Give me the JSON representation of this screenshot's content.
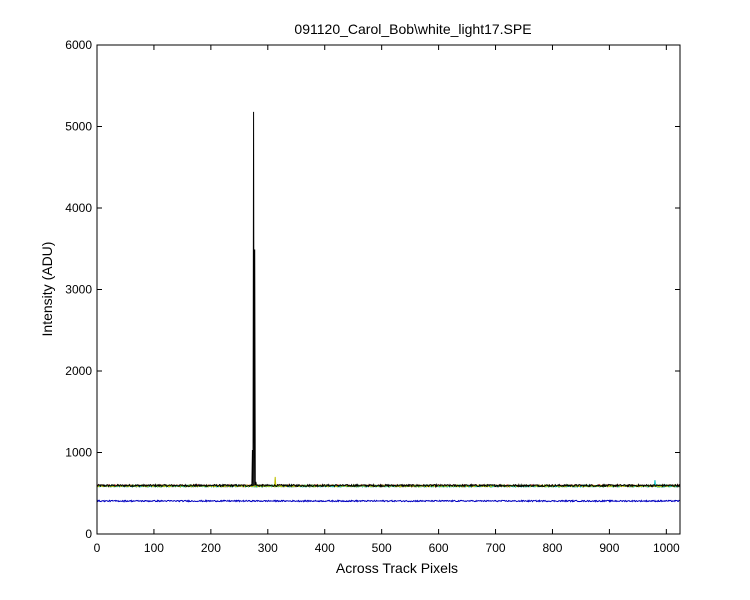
{
  "chart_data": {
    "type": "line",
    "title": "091120_Carol_Bob\\white_light17.SPE",
    "xlabel": "Across Track Pixels",
    "ylabel": "Intensity (ADU)",
    "xlim": [
      0,
      1024
    ],
    "ylim": [
      0,
      6000
    ],
    "xticks": [
      0,
      100,
      200,
      300,
      400,
      500,
      600,
      700,
      800,
      900,
      1000
    ],
    "yticks": [
      0,
      1000,
      2000,
      3000,
      4000,
      5000,
      6000
    ],
    "grid": false,
    "legend": "none",
    "series": [
      {
        "color": "#000000",
        "baseline": 595,
        "noise": 12,
        "spikes": [
          [
            273,
            1030
          ],
          [
            275,
            5180
          ],
          [
            277,
            3490
          ],
          [
            279,
            640
          ]
        ]
      },
      {
        "color": "#ff0000",
        "baseline": 592,
        "noise": 10,
        "spikes": []
      },
      {
        "color": "#00a000",
        "baseline": 590,
        "noise": 10,
        "spikes": []
      },
      {
        "color": "#00c0c0",
        "baseline": 588,
        "noise": 10,
        "spikes": [
          [
            980,
            660
          ]
        ]
      },
      {
        "color": "#c0c000",
        "baseline": 590,
        "noise": 9,
        "spikes": [
          [
            313,
            700
          ]
        ]
      },
      {
        "color": "#0000c0",
        "baseline": 405,
        "noise": 8,
        "spikes": []
      }
    ]
  }
}
